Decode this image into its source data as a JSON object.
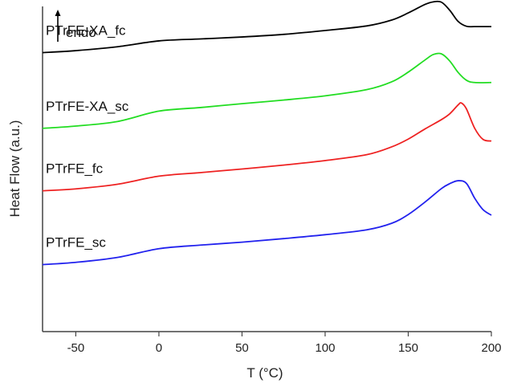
{
  "chart_data": {
    "type": "line",
    "title": "",
    "xlabel": "T (°C)",
    "ylabel": "Heat Flow (a.u.)",
    "xlim": [
      -70,
      200
    ],
    "ylim": [
      0,
      100
    ],
    "xticks": [
      -50,
      0,
      50,
      100,
      150,
      200
    ],
    "y_tick_labels": false,
    "annotation": {
      "text": "endo",
      "arrow": "up"
    },
    "series": [
      {
        "name": "PTrFE-XA_fc",
        "color": "#000000",
        "x": [
          -70,
          -50,
          -25,
          0,
          25,
          50,
          75,
          100,
          125,
          140,
          150,
          160,
          165,
          170,
          175,
          180,
          185,
          190,
          200
        ],
        "y": [
          85.8,
          86.4,
          87.6,
          89.4,
          90.0,
          90.6,
          91.4,
          92.6,
          94.0,
          95.8,
          98.0,
          100.6,
          101.4,
          101.3,
          98.8,
          95.4,
          93.9,
          93.8,
          93.8
        ]
      },
      {
        "name": "PTrFE-XA_sc",
        "color": "#22dd22",
        "x": [
          -70,
          -50,
          -25,
          0,
          25,
          50,
          75,
          100,
          125,
          140,
          150,
          160,
          165,
          170,
          175,
          180,
          185,
          190,
          200
        ],
        "y": [
          62.5,
          63.2,
          64.6,
          67.8,
          68.9,
          70.1,
          71.2,
          72.5,
          74.4,
          76.8,
          79.8,
          83.5,
          85.2,
          85.4,
          83.2,
          79.7,
          77.3,
          76.6,
          76.6
        ]
      },
      {
        "name": "PTrFE_fc",
        "color": "#ee2222",
        "x": [
          -70,
          -50,
          -25,
          0,
          25,
          50,
          75,
          100,
          125,
          140,
          150,
          160,
          170,
          175,
          180,
          182,
          185,
          190,
          195,
          200
        ],
        "y": [
          43.3,
          43.9,
          45.3,
          47.8,
          48.9,
          50.0,
          51.2,
          52.6,
          54.4,
          56.8,
          59.2,
          62.3,
          65.2,
          67.0,
          69.7,
          70.3,
          68.5,
          62.5,
          59.1,
          58.6
        ]
      },
      {
        "name": "PTrFE_sc",
        "color": "#2222ee",
        "x": [
          -70,
          -50,
          -25,
          0,
          25,
          50,
          75,
          100,
          125,
          140,
          150,
          160,
          170,
          175,
          180,
          185,
          190,
          195,
          200
        ],
        "y": [
          20.6,
          21.3,
          22.8,
          25.5,
          26.6,
          27.5,
          28.6,
          29.8,
          31.3,
          33.3,
          36.0,
          39.8,
          44.0,
          45.5,
          46.4,
          45.6,
          41.0,
          37.5,
          35.8
        ]
      }
    ]
  }
}
